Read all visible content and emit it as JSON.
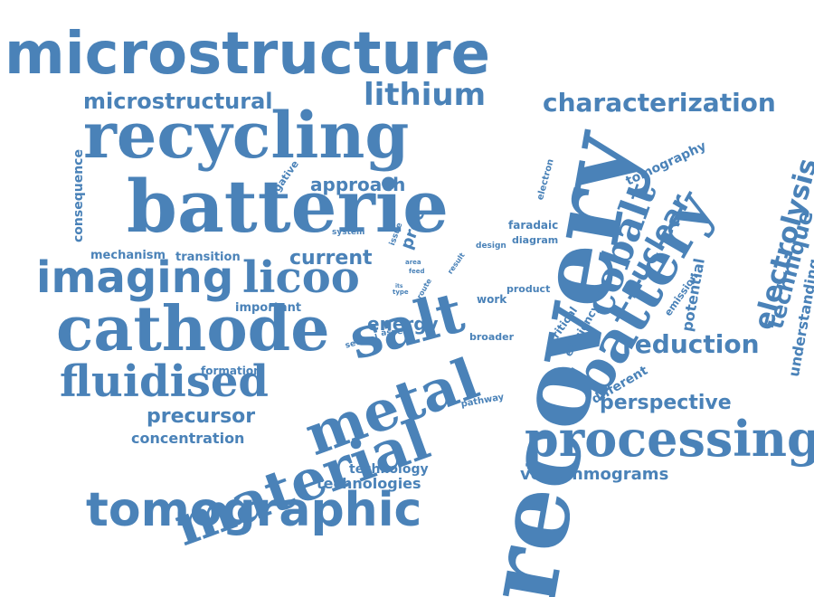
{
  "colors": {
    "word": "#4a82b8",
    "background": "#ffffff"
  },
  "words": [
    {
      "id": "microstructure",
      "text": "microstructure"
    },
    {
      "id": "recovery",
      "text": "recovery"
    },
    {
      "id": "recycling",
      "text": "recycling"
    },
    {
      "id": "batterie",
      "text": "batterie"
    },
    {
      "id": "cathode",
      "text": "cathode"
    },
    {
      "id": "material",
      "text": "material"
    },
    {
      "id": "tomographic",
      "text": "tomographic"
    },
    {
      "id": "metal",
      "text": "metal"
    },
    {
      "id": "battery",
      "text": "battery"
    },
    {
      "id": "processing",
      "text": "processing"
    },
    {
      "id": "imaging",
      "text": "imaging"
    },
    {
      "id": "licoo",
      "text": "licoo"
    },
    {
      "id": "fluidised",
      "text": "fluidised"
    },
    {
      "id": "salt",
      "text": "salt"
    },
    {
      "id": "cobalt",
      "text": "cobalt"
    },
    {
      "id": "characterization",
      "text": "characterization"
    },
    {
      "id": "lithium",
      "text": "lithium"
    },
    {
      "id": "microstructural",
      "text": "microstructural"
    },
    {
      "id": "reduction",
      "text": "reduction"
    },
    {
      "id": "nuclear",
      "text": "nuclear"
    },
    {
      "id": "electrolysis",
      "text": "electrolysis"
    },
    {
      "id": "technique",
      "text": "technique"
    },
    {
      "id": "precursor",
      "text": "precursor"
    },
    {
      "id": "voltammograms",
      "text": "voltammograms"
    },
    {
      "id": "perspective",
      "text": "perspective"
    },
    {
      "id": "current",
      "text": "current"
    },
    {
      "id": "approach",
      "text": "approach"
    },
    {
      "id": "energy",
      "text": "energy"
    },
    {
      "id": "concentration",
      "text": "concentration"
    },
    {
      "id": "technology",
      "text": "technology"
    },
    {
      "id": "technologies",
      "text": "technologies"
    },
    {
      "id": "important",
      "text": "important"
    },
    {
      "id": "formation",
      "text": "formation"
    },
    {
      "id": "mechanism",
      "text": "mechanism"
    },
    {
      "id": "transition",
      "text": "transition"
    },
    {
      "id": "understanding",
      "text": "understanding"
    },
    {
      "id": "potential",
      "text": "potential"
    },
    {
      "id": "tomography",
      "text": "tomography"
    },
    {
      "id": "different",
      "text": "different"
    },
    {
      "id": "consequence",
      "text": "consequence"
    },
    {
      "id": "proc",
      "text": "proc"
    },
    {
      "id": "work",
      "text": "work"
    },
    {
      "id": "product",
      "text": "product"
    },
    {
      "id": "faradaic",
      "text": "faradaic"
    },
    {
      "id": "diagram",
      "text": "diagram"
    },
    {
      "id": "broader",
      "text": "broader"
    },
    {
      "id": "pathway",
      "text": "pathway"
    },
    {
      "id": "design",
      "text": "design"
    },
    {
      "id": "system",
      "text": "system"
    },
    {
      "id": "several",
      "text": "several"
    },
    {
      "id": "aspect",
      "text": "aspect"
    },
    {
      "id": "critical",
      "text": "critical"
    },
    {
      "id": "efficiency",
      "text": "efficiency"
    },
    {
      "id": "emission",
      "text": "emission"
    },
    {
      "id": "negative",
      "text": "negative"
    },
    {
      "id": "electron",
      "text": "electron"
    },
    {
      "id": "issue",
      "text": "issue"
    },
    {
      "id": "result",
      "text": "result"
    },
    {
      "id": "route",
      "text": "route"
    },
    {
      "id": "area",
      "text": "area"
    },
    {
      "id": "feed",
      "text": "feed"
    },
    {
      "id": "type",
      "text": "type"
    },
    {
      "id": "its",
      "text": "its"
    }
  ]
}
